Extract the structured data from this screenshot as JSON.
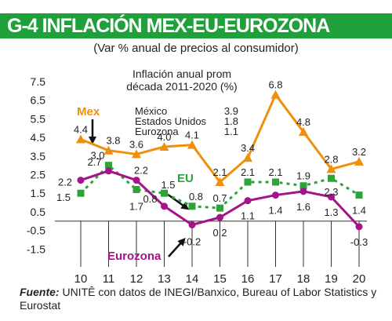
{
  "title": "G-4 INFLACIÓN MEX-EU-EUROZONA",
  "subtitle": "(Var % anual de precios al consumidor)",
  "footer": {
    "label": "Fuente:",
    "text": "Fuente: UNITÊ con datos de INEGI/Banxico, Bureau of Labor Statistics y Eurostat"
  },
  "colors": {
    "title_bg": "#1fa03b",
    "mex": "#f0900a",
    "eu": "#2ea33a",
    "eurozona": "#a6128a"
  },
  "chart_data": {
    "type": "line",
    "x": [
      "10",
      "11",
      "12",
      "13",
      "14",
      "15",
      "16",
      "17",
      "18",
      "19",
      "20"
    ],
    "y_ticks": [
      "7.5",
      "6.5",
      "5.5",
      "4.5",
      "3.5",
      "2.5",
      "1.5",
      "0.5",
      "-0.5",
      "-1.5"
    ],
    "ylim": [
      -1.5,
      7.5
    ],
    "grid": false,
    "series": [
      {
        "name": "Mex",
        "values": [
          4.4,
          3.8,
          3.6,
          4.0,
          4.1,
          2.1,
          3.4,
          6.8,
          4.8,
          2.8,
          3.2
        ],
        "labels": [
          "4.4",
          "3.8",
          "3.6",
          "4.0",
          "4.1",
          "2.1",
          "3.4",
          "6.8",
          "4.8",
          "2.8",
          "3.2"
        ]
      },
      {
        "name": "EU",
        "values": [
          1.5,
          3.0,
          1.7,
          1.5,
          0.8,
          0.7,
          2.1,
          2.1,
          1.9,
          2.3,
          1.4
        ],
        "labels": [
          "1.5",
          "3.0",
          "1.7",
          "1.5",
          "0.8",
          "0.7",
          "2.1",
          "2.1",
          "1.9",
          "2.3",
          "1.4"
        ]
      },
      {
        "name": "Eurozona",
        "values": [
          2.2,
          2.7,
          2.2,
          0.8,
          -0.2,
          0.2,
          1.1,
          1.4,
          1.6,
          1.3,
          -0.3
        ],
        "labels": [
          "2.2",
          "2.7",
          "2.2",
          "0.8",
          "-0.2",
          "0.2",
          "1.1",
          "1.4",
          "1.6",
          "1.3",
          "-0.3"
        ]
      }
    ],
    "inset": {
      "title_line1": "Inflación anual prom",
      "title_line2": "década 2011-2020 (%)",
      "rows": [
        {
          "name": "México",
          "value": "3.9"
        },
        {
          "name": "Estados Unidos",
          "value": "1.8"
        },
        {
          "name": "Eurozona",
          "value": "1.1"
        }
      ]
    }
  }
}
